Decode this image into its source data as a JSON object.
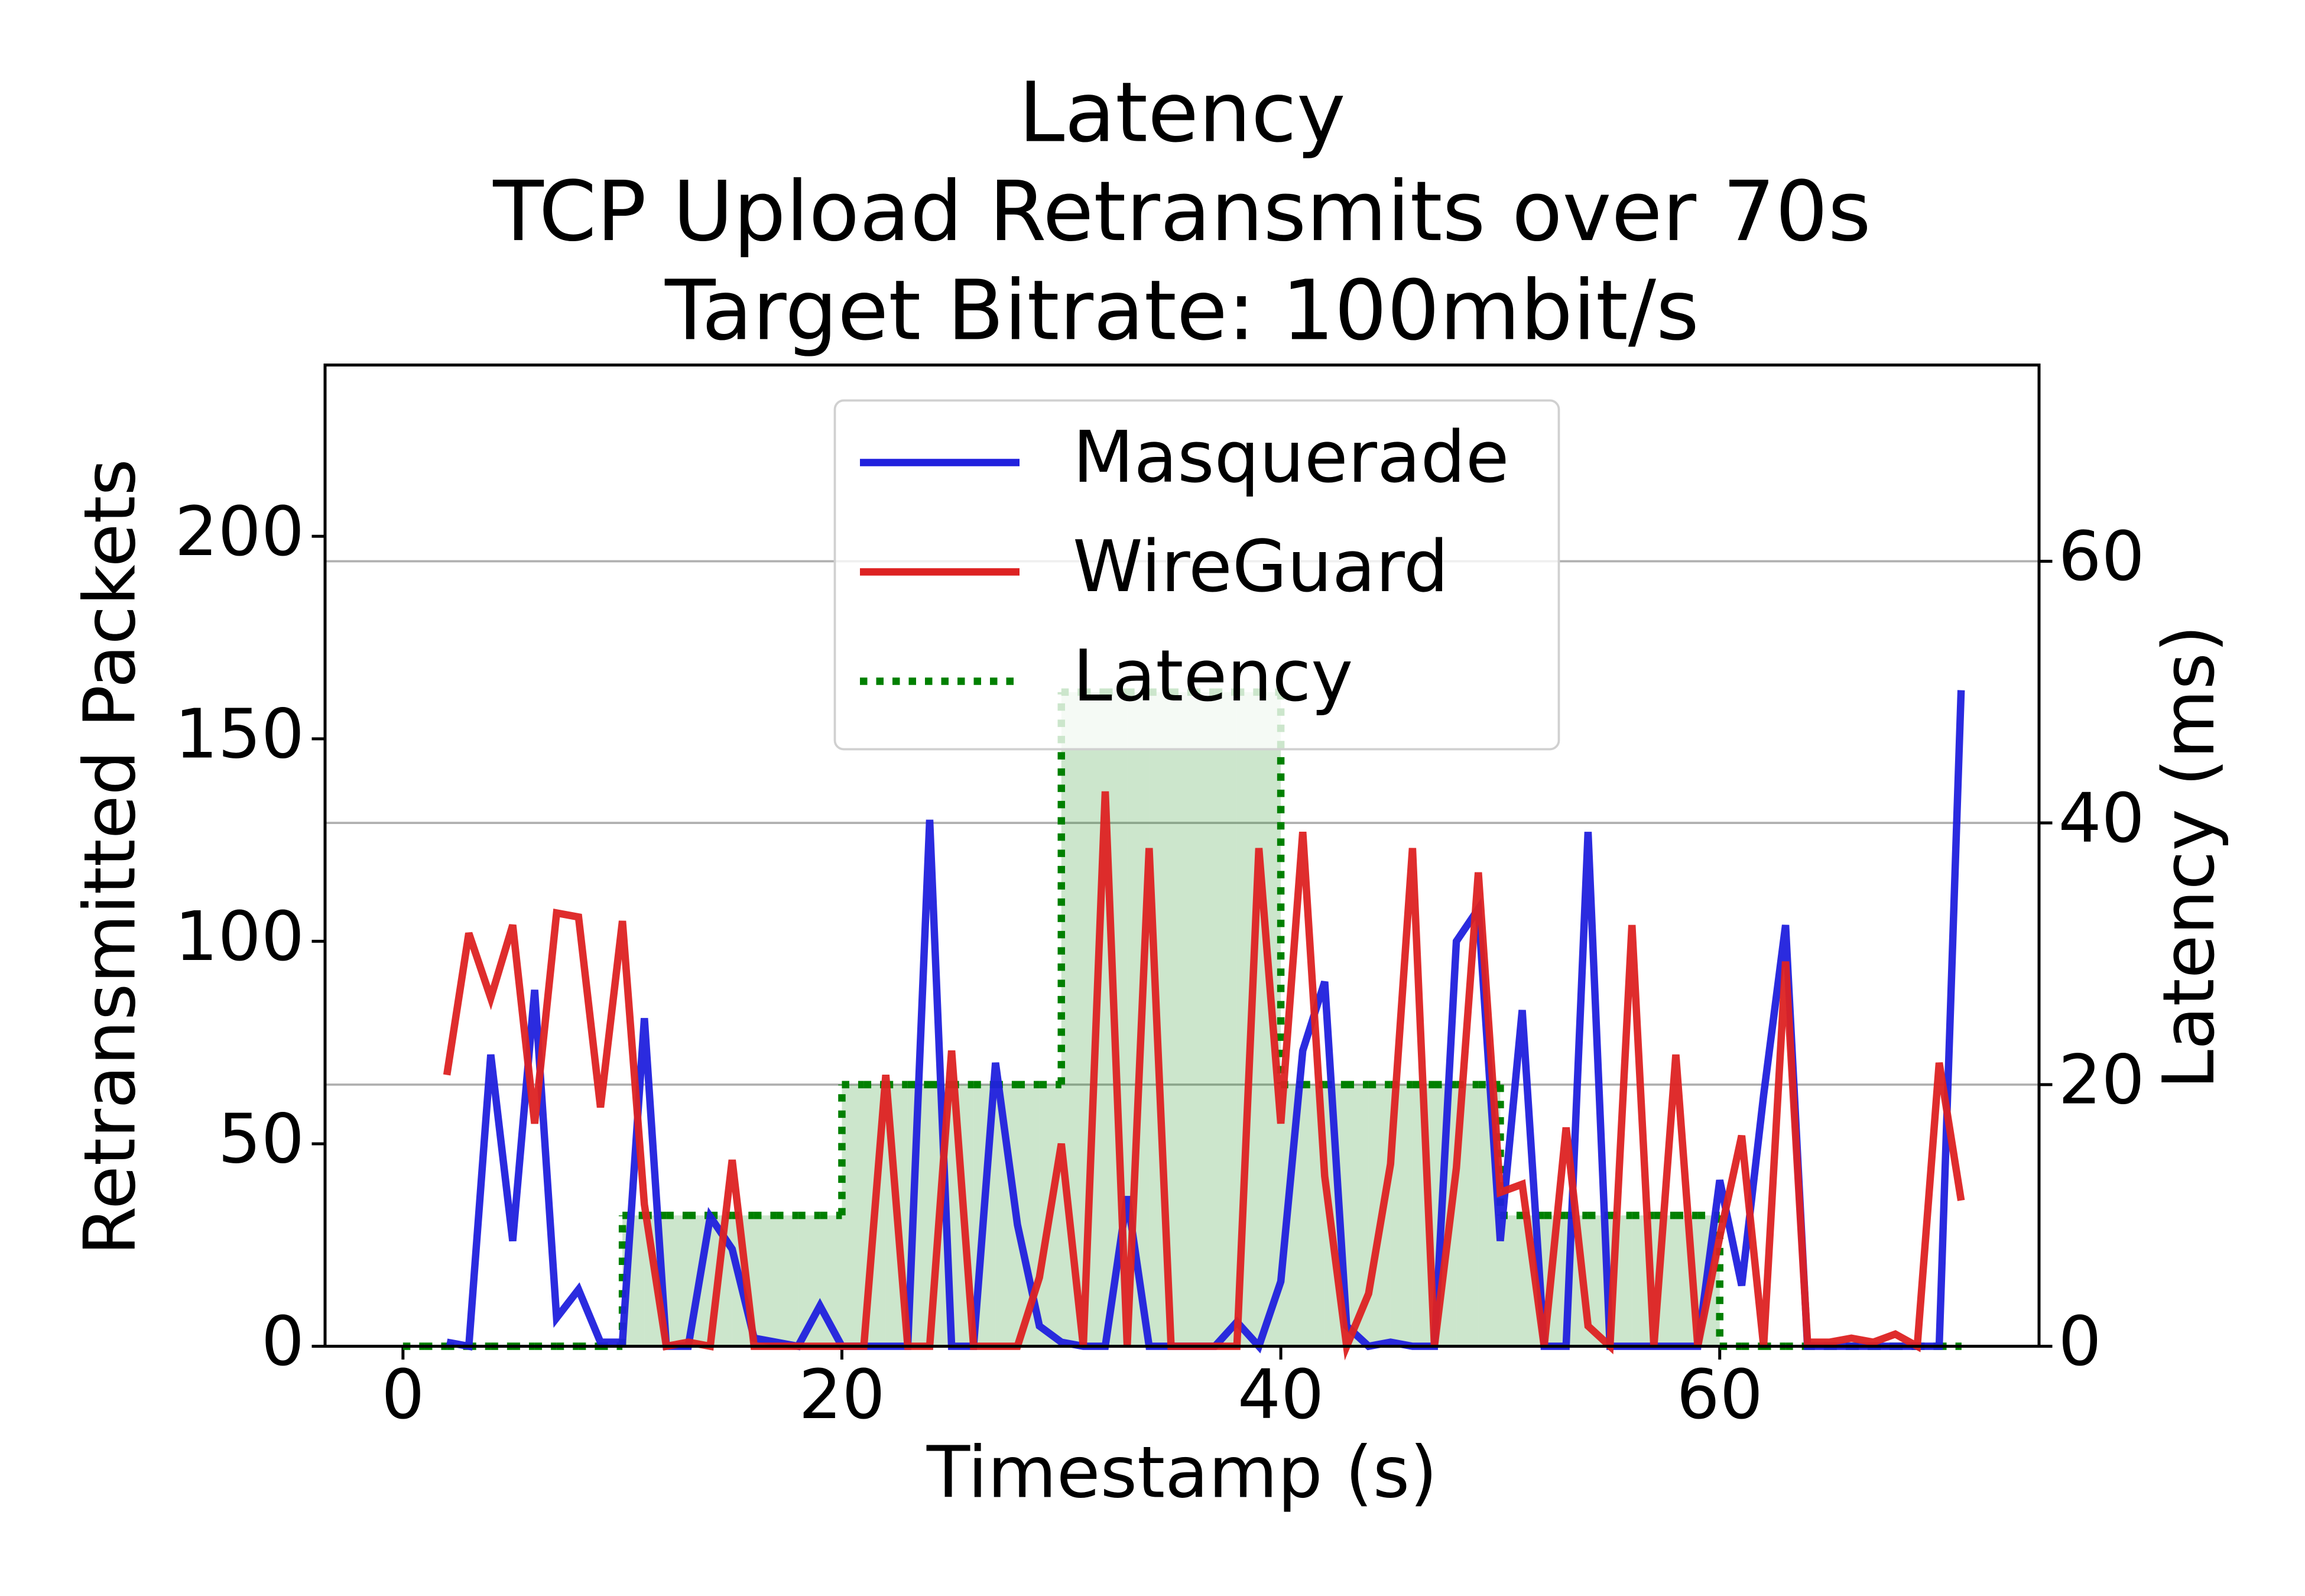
{
  "chart_data": {
    "type": "line",
    "title": [
      "Latency",
      "TCP Upload Retransmits over 70s",
      "Target Bitrate: 100mbit/s"
    ],
    "xlabel": "Timestamp (s)",
    "ylabel": "Retransmitted Packets",
    "y2label": "Latency (ms)",
    "xlim": [
      -3.55,
      74.55
    ],
    "xticks": [
      0,
      20,
      40,
      60
    ],
    "ylim": [
      0,
      242.3
    ],
    "yticks": [
      0,
      50,
      100,
      150,
      200
    ],
    "y2lim": [
      0,
      75
    ],
    "y2ticks": [
      0,
      20,
      40,
      60
    ],
    "grid": "y2",
    "legend": "upper center",
    "y2color": "green",
    "series": [
      {
        "name": "Masquerade",
        "color": "#2020dd",
        "style": "solid",
        "x": [
          2,
          3,
          4,
          5,
          6,
          7,
          8,
          9,
          10,
          11,
          12,
          13,
          14,
          15,
          16,
          17,
          18,
          19,
          20,
          21,
          22,
          23,
          24,
          25,
          26,
          27,
          28,
          29,
          30,
          31,
          32,
          33,
          34,
          35,
          36,
          37,
          38,
          39,
          40,
          41,
          42,
          43,
          44,
          45,
          46,
          47,
          48,
          49,
          50,
          51,
          52,
          53,
          54,
          55,
          56,
          57,
          58,
          59,
          60,
          61,
          62,
          63,
          64,
          65,
          66,
          67,
          68,
          69,
          70,
          71
        ],
        "values": [
          1,
          0,
          72,
          26,
          88,
          7,
          14,
          1,
          1,
          81,
          0,
          0,
          32,
          24,
          2,
          1,
          0,
          10,
          0,
          0,
          0,
          0,
          130,
          0,
          0,
          70,
          30,
          5,
          1,
          0,
          0,
          37,
          0,
          0,
          0,
          0,
          6,
          0,
          16,
          73,
          90,
          5,
          0,
          1,
          0,
          0,
          100,
          108,
          26,
          83,
          0,
          0,
          127,
          0,
          0,
          0,
          0,
          0,
          41,
          15,
          62,
          104,
          0,
          0,
          0,
          0,
          0,
          0,
          0,
          162
        ]
      },
      {
        "name": "WireGuard",
        "color": "#dd2222",
        "style": "solid",
        "x": [
          2,
          3,
          4,
          5,
          6,
          7,
          8,
          9,
          10,
          11,
          12,
          13,
          14,
          15,
          16,
          17,
          18,
          19,
          20,
          21,
          22,
          23,
          24,
          25,
          26,
          27,
          28,
          29,
          30,
          31,
          32,
          33,
          34,
          35,
          36,
          37,
          38,
          39,
          40,
          41,
          42,
          43,
          44,
          45,
          46,
          47,
          48,
          49,
          50,
          51,
          52,
          53,
          54,
          55,
          56,
          57,
          58,
          59,
          60,
          61,
          62,
          63,
          64,
          65,
          66,
          67,
          68,
          69,
          70,
          71
        ],
        "values": [
          67,
          102,
          86,
          104,
          55,
          107,
          106,
          59,
          105,
          35,
          0,
          1,
          0,
          46,
          0,
          0,
          0,
          0,
          0,
          0,
          67,
          0,
          0,
          73,
          0,
          0,
          0,
          17,
          50,
          0,
          137,
          0,
          123,
          0,
          0,
          0,
          0,
          123,
          55,
          127,
          42,
          0,
          13,
          45,
          123,
          0,
          44,
          117,
          38,
          40,
          0,
          54,
          5,
          0,
          104,
          0,
          72,
          0,
          27,
          52,
          0,
          95,
          1,
          1,
          2,
          1,
          3,
          0,
          70,
          36
        ]
      },
      {
        "name": "Latency",
        "color": "green",
        "style": "dotted",
        "axis": "y2",
        "fill": "rgba(0,128,0,0.2)",
        "x": [
          0,
          1,
          2,
          3,
          4,
          5,
          6,
          7,
          8,
          9,
          10,
          11,
          12,
          13,
          14,
          15,
          16,
          17,
          18,
          19,
          20,
          21,
          22,
          23,
          24,
          25,
          26,
          27,
          28,
          29,
          30,
          31,
          32,
          33,
          34,
          35,
          36,
          37,
          38,
          39,
          40,
          41,
          42,
          43,
          44,
          45,
          46,
          47,
          48,
          49,
          50,
          51,
          52,
          53,
          54,
          55,
          56,
          57,
          58,
          59,
          60,
          61,
          62,
          63,
          64,
          65,
          66,
          67,
          68,
          69,
          70,
          71
        ],
        "values": [
          0,
          0,
          0,
          0,
          0,
          0,
          0,
          0,
          0,
          0,
          10,
          10,
          10,
          10,
          10,
          10,
          10,
          10,
          10,
          10,
          20,
          20,
          20,
          20,
          20,
          20,
          20,
          20,
          20,
          20,
          50,
          50,
          50,
          50,
          50,
          50,
          50,
          50,
          50,
          50,
          20,
          20,
          20,
          20,
          20,
          20,
          20,
          20,
          20,
          20,
          10,
          10,
          10,
          10,
          10,
          10,
          10,
          10,
          10,
          10,
          0,
          0,
          0,
          0,
          0,
          0,
          0,
          0,
          0,
          0,
          0,
          0
        ]
      }
    ]
  }
}
